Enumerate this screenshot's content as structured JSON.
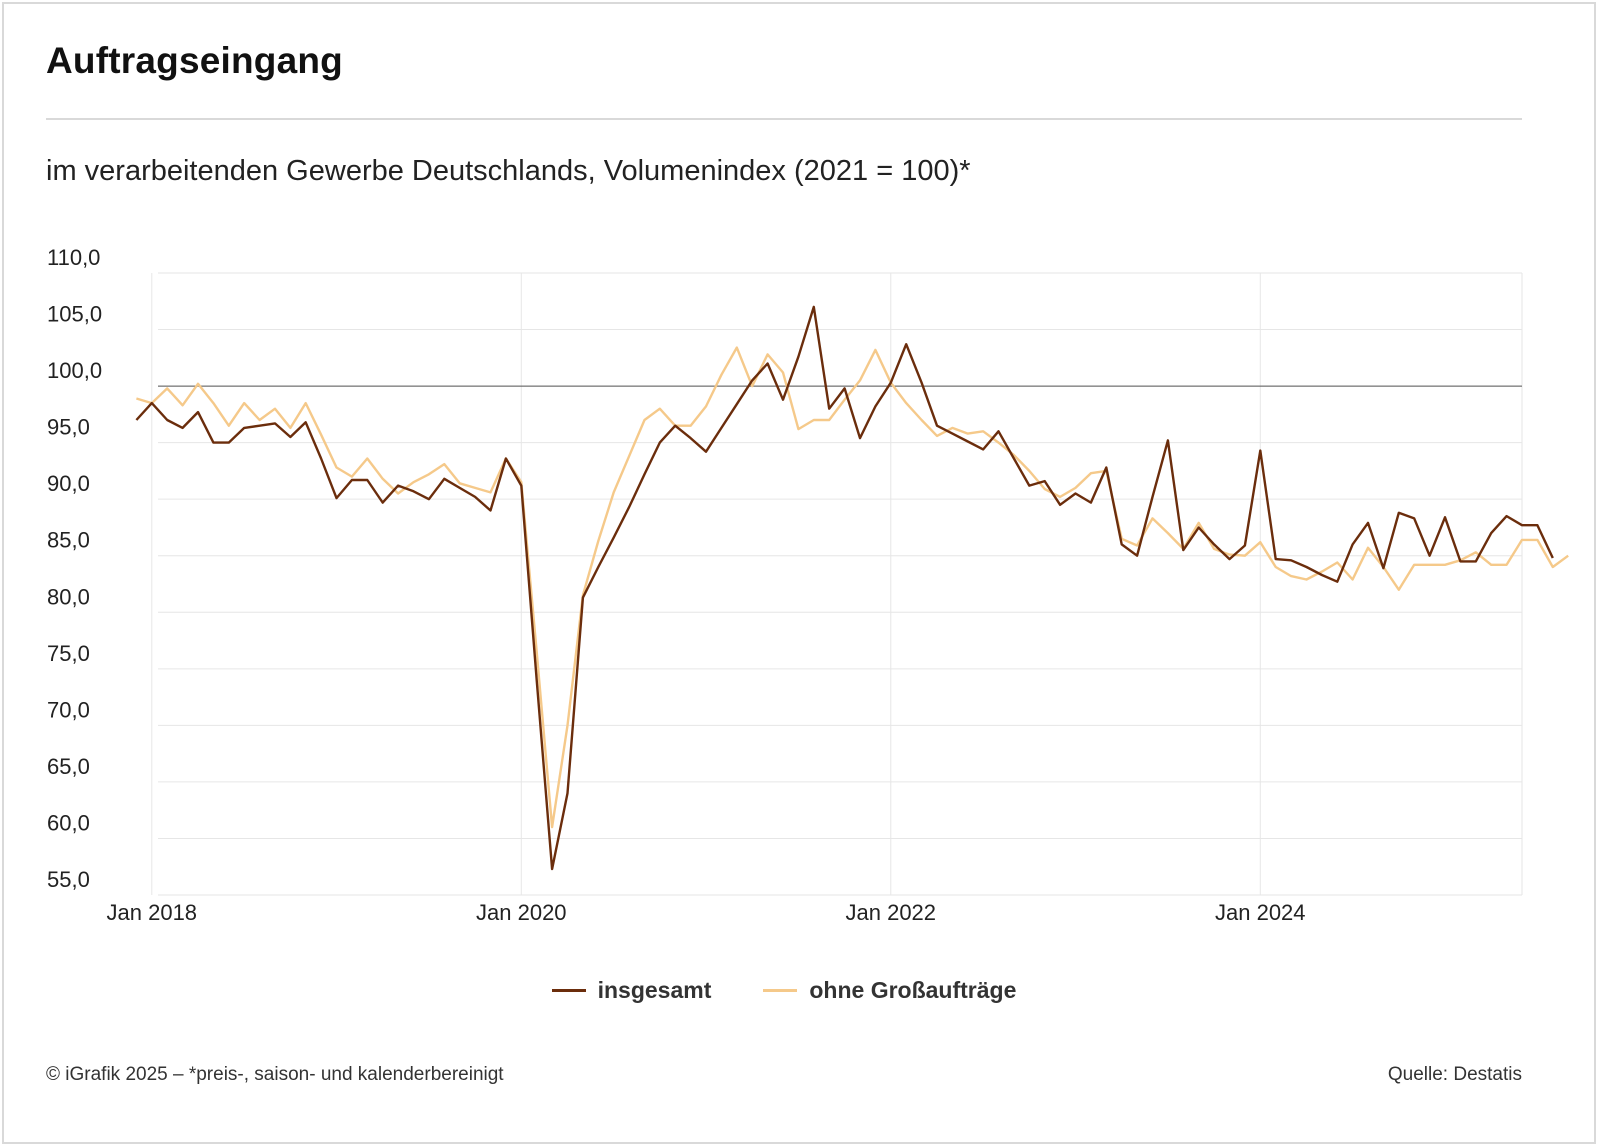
{
  "title": "Auftragseingang",
  "subtitle": "im verarbeitenden Gewerbe Deutschlands, Volumenindex (2021 = 100)*",
  "footer": {
    "left": "© iGrafik 2025 – *preis-, saison- und kalenderbereinigt",
    "right": "Quelle: Destatis"
  },
  "colors": {
    "insgesamt": "#6b2d0c",
    "ohne": "#f5c98a",
    "grid": "#e6e6e6",
    "reference": "#555555"
  },
  "chart_data": {
    "type": "line",
    "title": "Auftragseingang",
    "subtitle": "im verarbeitenden Gewerbe Deutschlands, Volumenindex (2021 = 100)*",
    "ylim": [
      55,
      110
    ],
    "yticks": [
      "55,0",
      "60,0",
      "65,0",
      "70,0",
      "75,0",
      "80,0",
      "85,0",
      "90,0",
      "95,0",
      "100,0",
      "105,0",
      "110,0"
    ],
    "ytick_values": [
      55,
      60,
      65,
      70,
      75,
      80,
      85,
      90,
      95,
      100,
      105,
      110
    ],
    "reference_line": 100,
    "x_range": [
      "2017-11",
      "2025-06"
    ],
    "xticks": [
      {
        "label": "Jan 2018",
        "date": "2018-01"
      },
      {
        "label": "Jan 2020",
        "date": "2020-01"
      },
      {
        "label": "Jan 2022",
        "date": "2022-01"
      },
      {
        "label": "Jan 2024",
        "date": "2024-01"
      }
    ],
    "grid": true,
    "legend_position": "bottom-center",
    "series": [
      {
        "name": "insgesamt",
        "color": "#6b2d0c",
        "points": [
          [
            "2017-12",
            97.0
          ],
          [
            "2018-01",
            98.5
          ],
          [
            "2018-02",
            97.0
          ],
          [
            "2018-03",
            96.3
          ],
          [
            "2018-04",
            97.7
          ],
          [
            "2018-05",
            95.0
          ],
          [
            "2018-06",
            95.0
          ],
          [
            "2018-07",
            96.3
          ],
          [
            "2018-08",
            96.5
          ],
          [
            "2018-09",
            96.7
          ],
          [
            "2018-10",
            95.5
          ],
          [
            "2018-11",
            96.8
          ],
          [
            "2018-12",
            93.6
          ],
          [
            "2019-01",
            90.1
          ],
          [
            "2019-02",
            91.7
          ],
          [
            "2019-03",
            91.7
          ],
          [
            "2019-04",
            89.7
          ],
          [
            "2019-05",
            91.2
          ],
          [
            "2019-06",
            90.7
          ],
          [
            "2019-07",
            90.0
          ],
          [
            "2019-08",
            91.8
          ],
          [
            "2019-09",
            91.0
          ],
          [
            "2019-10",
            90.2
          ],
          [
            "2019-11",
            89.0
          ],
          [
            "2019-12",
            93.6
          ],
          [
            "2020-01",
            91.2
          ],
          [
            "2020-02",
            74.0
          ],
          [
            "2020-03",
            57.3
          ],
          [
            "2020-04",
            64.0
          ],
          [
            "2020-05",
            81.3
          ],
          [
            "2020-06",
            84.0
          ],
          [
            "2020-07",
            86.6
          ],
          [
            "2020-08",
            89.3
          ],
          [
            "2020-09",
            92.2
          ],
          [
            "2020-10",
            95.0
          ],
          [
            "2020-11",
            96.5
          ],
          [
            "2020-12",
            95.4
          ],
          [
            "2021-01",
            94.2
          ],
          [
            "2021-02",
            96.3
          ],
          [
            "2021-03",
            98.4
          ],
          [
            "2021-04",
            100.5
          ],
          [
            "2021-05",
            102.0
          ],
          [
            "2021-06",
            98.8
          ],
          [
            "2021-07",
            102.6
          ],
          [
            "2021-08",
            107.0
          ],
          [
            "2021-09",
            98.0
          ],
          [
            "2021-10",
            99.8
          ],
          [
            "2021-11",
            95.4
          ],
          [
            "2021-12",
            98.2
          ],
          [
            "2022-01",
            100.3
          ],
          [
            "2022-02",
            103.7
          ],
          [
            "2022-03",
            100.3
          ],
          [
            "2022-04",
            96.5
          ],
          [
            "2022-05",
            95.8
          ],
          [
            "2022-06",
            95.1
          ],
          [
            "2022-07",
            94.4
          ],
          [
            "2022-08",
            96.0
          ],
          [
            "2022-09",
            93.6
          ],
          [
            "2022-10",
            91.2
          ],
          [
            "2022-11",
            91.6
          ],
          [
            "2022-12",
            89.5
          ],
          [
            "2023-01",
            90.5
          ],
          [
            "2023-02",
            89.7
          ],
          [
            "2023-03",
            92.8
          ],
          [
            "2023-04",
            86.0
          ],
          [
            "2023-05",
            85.0
          ],
          [
            "2023-06",
            90.2
          ],
          [
            "2023-07",
            95.2
          ],
          [
            "2023-08",
            85.5
          ],
          [
            "2023-09",
            87.5
          ],
          [
            "2023-10",
            86.0
          ],
          [
            "2023-11",
            84.7
          ],
          [
            "2023-12",
            85.9
          ],
          [
            "2024-01",
            94.3
          ],
          [
            "2024-02",
            84.7
          ],
          [
            "2024-03",
            84.6
          ],
          [
            "2024-04",
            84.0
          ],
          [
            "2024-05",
            83.3
          ],
          [
            "2024-06",
            82.7
          ],
          [
            "2024-07",
            86.0
          ],
          [
            "2024-08",
            87.9
          ],
          [
            "2024-09",
            83.9
          ],
          [
            "2024-10",
            88.8
          ],
          [
            "2024-11",
            88.3
          ],
          [
            "2024-12",
            85.0
          ],
          [
            "2025-01",
            88.4
          ],
          [
            "2025-02",
            84.5
          ],
          [
            "2025-03",
            84.5
          ],
          [
            "2025-04",
            87.0
          ],
          [
            "2025-05",
            88.5
          ],
          [
            "2025-06",
            87.7
          ],
          [
            "2025-07",
            87.7
          ],
          [
            "2025-08",
            84.8
          ]
        ]
      },
      {
        "name": "ohne Großaufträge",
        "color": "#f5c98a",
        "points": [
          [
            "2017-12",
            98.9
          ],
          [
            "2018-01",
            98.5
          ],
          [
            "2018-02",
            99.8
          ],
          [
            "2018-03",
            98.3
          ],
          [
            "2018-04",
            100.2
          ],
          [
            "2018-05",
            98.5
          ],
          [
            "2018-06",
            96.5
          ],
          [
            "2018-07",
            98.5
          ],
          [
            "2018-08",
            97.0
          ],
          [
            "2018-09",
            98.0
          ],
          [
            "2018-10",
            96.3
          ],
          [
            "2018-11",
            98.5
          ],
          [
            "2018-12",
            95.7
          ],
          [
            "2019-01",
            92.8
          ],
          [
            "2019-02",
            92.0
          ],
          [
            "2019-03",
            93.6
          ],
          [
            "2019-04",
            91.8
          ],
          [
            "2019-05",
            90.5
          ],
          [
            "2019-06",
            91.5
          ],
          [
            "2019-07",
            92.2
          ],
          [
            "2019-08",
            93.1
          ],
          [
            "2019-09",
            91.4
          ],
          [
            "2019-10",
            91.0
          ],
          [
            "2019-11",
            90.6
          ],
          [
            "2019-12",
            93.6
          ],
          [
            "2020-01",
            91.5
          ],
          [
            "2020-02",
            76.5
          ],
          [
            "2020-03",
            61.0
          ],
          [
            "2020-04",
            70.0
          ],
          [
            "2020-05",
            81.5
          ],
          [
            "2020-06",
            86.3
          ],
          [
            "2020-07",
            90.6
          ],
          [
            "2020-08",
            93.8
          ],
          [
            "2020-09",
            97.0
          ],
          [
            "2020-10",
            98.0
          ],
          [
            "2020-11",
            96.5
          ],
          [
            "2020-12",
            96.5
          ],
          [
            "2021-01",
            98.2
          ],
          [
            "2021-02",
            101.0
          ],
          [
            "2021-03",
            103.4
          ],
          [
            "2021-04",
            100.0
          ],
          [
            "2021-05",
            102.8
          ],
          [
            "2021-06",
            101.2
          ],
          [
            "2021-07",
            96.2
          ],
          [
            "2021-08",
            97.0
          ],
          [
            "2021-09",
            97.0
          ],
          [
            "2021-10",
            98.8
          ],
          [
            "2021-11",
            100.5
          ],
          [
            "2021-12",
            103.2
          ],
          [
            "2022-01",
            100.3
          ],
          [
            "2022-02",
            98.5
          ],
          [
            "2022-03",
            97.0
          ],
          [
            "2022-04",
            95.6
          ],
          [
            "2022-05",
            96.3
          ],
          [
            "2022-06",
            95.8
          ],
          [
            "2022-07",
            96.0
          ],
          [
            "2022-08",
            95.0
          ],
          [
            "2022-09",
            93.9
          ],
          [
            "2022-10",
            92.5
          ],
          [
            "2022-11",
            90.9
          ],
          [
            "2022-12",
            90.2
          ],
          [
            "2023-01",
            91.0
          ],
          [
            "2023-02",
            92.3
          ],
          [
            "2023-03",
            92.5
          ],
          [
            "2023-04",
            86.5
          ],
          [
            "2023-05",
            85.9
          ],
          [
            "2023-06",
            88.3
          ],
          [
            "2023-07",
            87.0
          ],
          [
            "2023-08",
            85.6
          ],
          [
            "2023-09",
            87.9
          ],
          [
            "2023-10",
            85.6
          ],
          [
            "2023-11",
            85.1
          ],
          [
            "2023-12",
            85.0
          ],
          [
            "2024-01",
            86.2
          ],
          [
            "2024-02",
            84.0
          ],
          [
            "2024-03",
            83.2
          ],
          [
            "2024-04",
            82.9
          ],
          [
            "2024-05",
            83.6
          ],
          [
            "2024-06",
            84.4
          ],
          [
            "2024-07",
            82.9
          ],
          [
            "2024-08",
            85.7
          ],
          [
            "2024-09",
            84.0
          ],
          [
            "2024-10",
            82.0
          ],
          [
            "2024-11",
            84.2
          ],
          [
            "2024-12",
            84.2
          ],
          [
            "2025-01",
            84.2
          ],
          [
            "2025-02",
            84.6
          ],
          [
            "2025-03",
            85.3
          ],
          [
            "2025-04",
            84.2
          ],
          [
            "2025-05",
            84.2
          ],
          [
            "2025-06",
            86.4
          ],
          [
            "2025-07",
            86.4
          ],
          [
            "2025-08",
            84.0
          ],
          [
            "2025-09",
            85.0
          ]
        ]
      }
    ]
  }
}
